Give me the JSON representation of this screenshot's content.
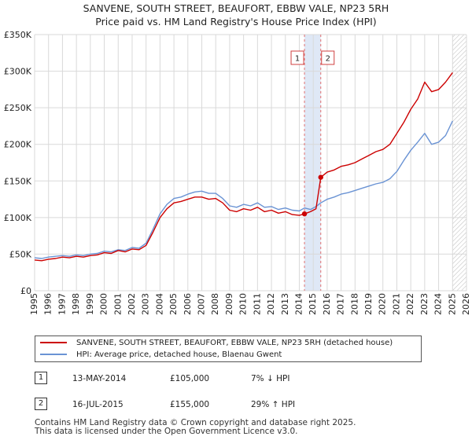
{
  "title": {
    "line1": "SANVENE, SOUTH STREET, BEAUFORT, EBBW VALE, NP23 5RH",
    "line2": "Price paid vs. HM Land Registry's House Price Index (HPI)"
  },
  "colors": {
    "price_line": "#cc0000",
    "hpi_line": "#6a93d4",
    "shade": "#dfe8f6",
    "marker_line": "#e07070",
    "grid": "#d9d9d9"
  },
  "legend": {
    "price_label": "SANVENE, SOUTH STREET, BEAUFORT, EBBW VALE, NP23 5RH (detached house)",
    "hpi_label": "HPI: Average price, detached house, Blaenau Gwent"
  },
  "transactions": [
    {
      "num": "1",
      "date": "13-MAY-2014",
      "price": "£105,000",
      "hpi": "7% ↓ HPI"
    },
    {
      "num": "2",
      "date": "16-JUL-2015",
      "price": "£155,000",
      "hpi": "29% ↑ HPI"
    }
  ],
  "footer": {
    "line1": "Contains HM Land Registry data © Crown copyright and database right 2025.",
    "line2": "This data is licensed under the Open Government Licence v3.0."
  },
  "chart_data": {
    "type": "line",
    "title": "Price paid vs. HM Land Registry's House Price Index (HPI)",
    "xlabel": "",
    "ylabel": "",
    "xlim": [
      1995,
      2026
    ],
    "ylim": [
      0,
      350000
    ],
    "x_ticks": [
      "1995",
      "1996",
      "1997",
      "1998",
      "1999",
      "2000",
      "2001",
      "2002",
      "2003",
      "2004",
      "2005",
      "2006",
      "2007",
      "2008",
      "2009",
      "2010",
      "2011",
      "2012",
      "2013",
      "2014",
      "2015",
      "2016",
      "2017",
      "2018",
      "2019",
      "2020",
      "2021",
      "2022",
      "2023",
      "2024",
      "2025",
      "2026"
    ],
    "y_ticks": [
      {
        "value": 0,
        "label": "£0"
      },
      {
        "value": 50000,
        "label": "£50K"
      },
      {
        "value": 100000,
        "label": "£100K"
      },
      {
        "value": 150000,
        "label": "£150K"
      },
      {
        "value": 200000,
        "label": "£200K"
      },
      {
        "value": 250000,
        "label": "£250K"
      },
      {
        "value": 300000,
        "label": "£300K"
      },
      {
        "value": 350000,
        "label": "£350K"
      }
    ],
    "shaded_range": [
      2014.37,
      2015.54
    ],
    "future_hatch_from": 2025.0,
    "sales": [
      {
        "label": "1",
        "x": 2014.37,
        "y": 105000
      },
      {
        "label": "2",
        "x": 2015.54,
        "y": 155000
      }
    ],
    "series": [
      {
        "name": "SANVENE, SOUTH STREET, BEAUFORT, EBBW VALE, NP23 5RH (detached house)",
        "x": [
          1995.0,
          1995.5,
          1996.0,
          1996.5,
          1997.0,
          1997.5,
          1998.0,
          1998.5,
          1999.0,
          1999.5,
          2000.0,
          2000.5,
          2001.0,
          2001.5,
          2002.0,
          2002.5,
          2003.0,
          2003.5,
          2004.0,
          2004.5,
          2005.0,
          2005.5,
          2006.0,
          2006.5,
          2007.0,
          2007.5,
          2008.0,
          2008.5,
          2009.0,
          2009.5,
          2010.0,
          2010.5,
          2011.0,
          2011.5,
          2012.0,
          2012.5,
          2013.0,
          2013.5,
          2014.0,
          2014.37,
          2014.8,
          2015.2,
          2015.54,
          2016.0,
          2016.5,
          2017.0,
          2017.5,
          2018.0,
          2018.5,
          2019.0,
          2019.5,
          2020.0,
          2020.5,
          2021.0,
          2021.5,
          2022.0,
          2022.5,
          2023.0,
          2023.5,
          2024.0,
          2024.5,
          2025.0
        ],
        "y": [
          42000,
          41000,
          43000,
          44000,
          46000,
          45000,
          47000,
          46000,
          48000,
          49000,
          52000,
          51000,
          55000,
          53000,
          57000,
          56000,
          62000,
          80000,
          100000,
          112000,
          120000,
          122000,
          125000,
          128000,
          128000,
          125000,
          126000,
          120000,
          110000,
          108000,
          112000,
          110000,
          114000,
          108000,
          110000,
          106000,
          108000,
          104000,
          103000,
          105000,
          108000,
          112000,
          155000,
          162000,
          165000,
          170000,
          172000,
          175000,
          180000,
          185000,
          190000,
          193000,
          200000,
          215000,
          230000,
          248000,
          262000,
          285000,
          272000,
          275000,
          285000,
          298000
        ]
      },
      {
        "name": "HPI: Average price, detached house, Blaenau Gwent",
        "x": [
          1995.0,
          1995.5,
          1996.0,
          1996.5,
          1997.0,
          1997.5,
          1998.0,
          1998.5,
          1999.0,
          1999.5,
          2000.0,
          2000.5,
          2001.0,
          2001.5,
          2002.0,
          2002.5,
          2003.0,
          2003.5,
          2004.0,
          2004.5,
          2005.0,
          2005.5,
          2006.0,
          2006.5,
          2007.0,
          2007.5,
          2008.0,
          2008.5,
          2009.0,
          2009.5,
          2010.0,
          2010.5,
          2011.0,
          2011.5,
          2012.0,
          2012.5,
          2013.0,
          2013.5,
          2014.0,
          2014.37,
          2014.8,
          2015.2,
          2015.54,
          2016.0,
          2016.5,
          2017.0,
          2017.5,
          2018.0,
          2018.5,
          2019.0,
          2019.5,
          2020.0,
          2020.5,
          2021.0,
          2021.5,
          2022.0,
          2022.5,
          2023.0,
          2023.5,
          2024.0,
          2024.5,
          2025.0
        ],
        "y": [
          45000,
          44000,
          46000,
          47000,
          48000,
          47000,
          49000,
          48000,
          50000,
          51000,
          54000,
          53000,
          56000,
          55000,
          59000,
          58000,
          65000,
          84000,
          105000,
          118000,
          126000,
          128000,
          132000,
          135000,
          136000,
          133000,
          133000,
          126000,
          116000,
          114000,
          118000,
          116000,
          120000,
          114000,
          115000,
          111000,
          113000,
          110000,
          109000,
          113000,
          111000,
          115000,
          120000,
          125000,
          128000,
          132000,
          134000,
          137000,
          140000,
          143000,
          146000,
          148000,
          153000,
          163000,
          178000,
          192000,
          203000,
          215000,
          200000,
          203000,
          212000,
          232000
        ]
      }
    ]
  }
}
